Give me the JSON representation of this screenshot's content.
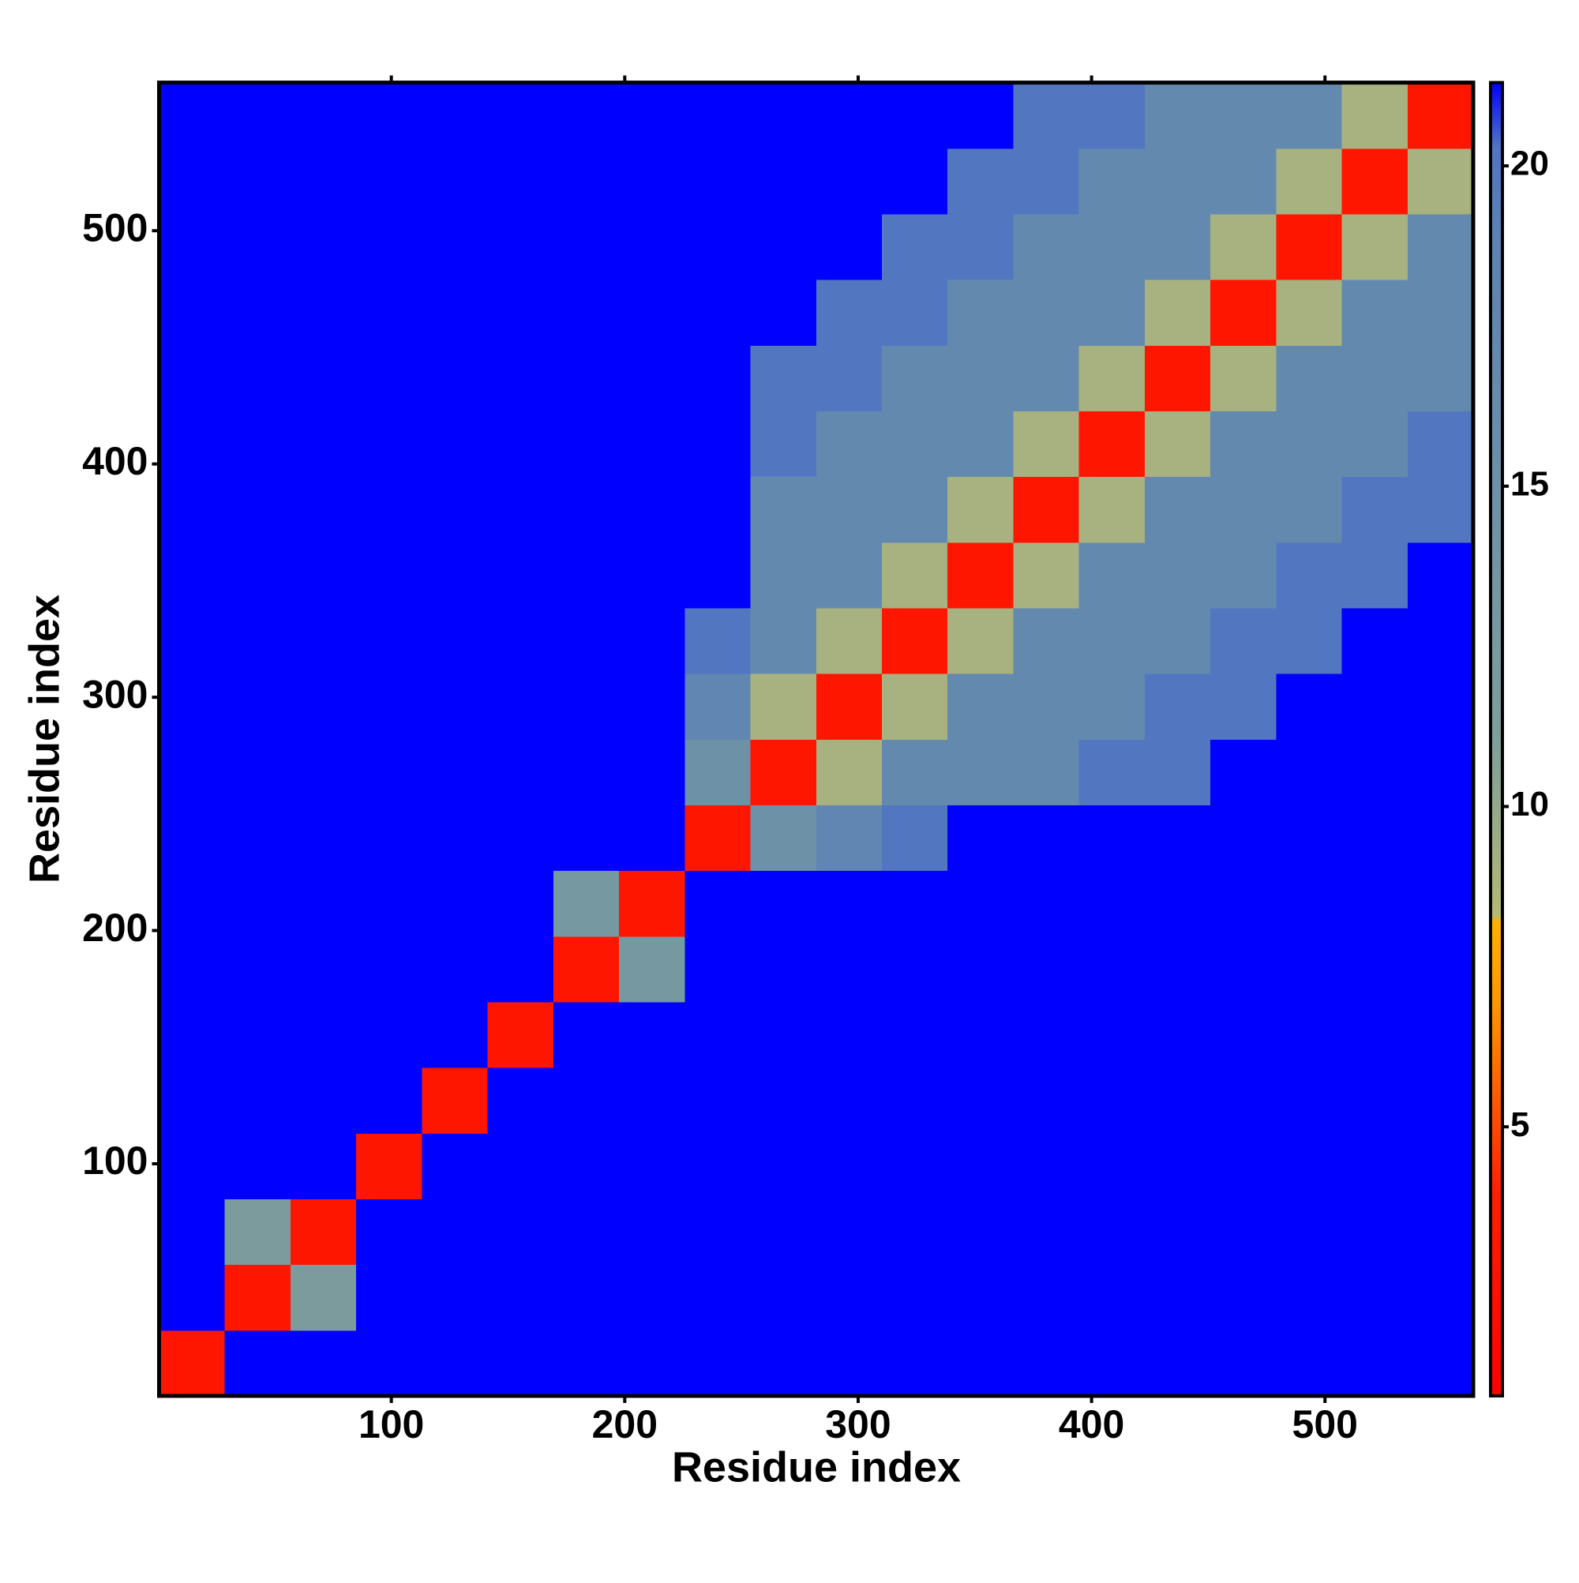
{
  "chart_data": {
    "type": "heatmap",
    "xlabel": "Residue index",
    "ylabel": "Residue index",
    "xlim": [
      0.5,
      563.5
    ],
    "ylim": [
      0.5,
      563.5
    ],
    "xticks": [
      100,
      200,
      300,
      400,
      500
    ],
    "yticks": [
      100,
      200,
      300,
      400,
      500
    ],
    "bins": [
      0.5,
      28.65,
      56.8,
      84.95,
      113.1,
      141.25,
      169.4,
      197.55,
      225.7,
      253.85,
      282,
      310.15,
      338.3,
      366.45,
      394.6,
      422.75,
      450.9,
      479.05,
      507.2,
      535.35,
      563.5
    ],
    "z": [
      [
        3,
        22,
        25,
        25,
        25,
        25,
        25,
        25,
        25,
        25,
        25,
        25,
        25,
        25,
        25,
        25,
        25,
        25,
        25,
        25
      ],
      [
        22,
        3,
        12,
        25,
        25,
        25,
        25,
        25,
        25,
        25,
        25,
        25,
        25,
        25,
        25,
        25,
        25,
        25,
        25,
        25
      ],
      [
        25,
        12,
        3,
        22,
        25,
        25,
        25,
        25,
        25,
        25,
        25,
        25,
        25,
        25,
        25,
        25,
        25,
        25,
        25,
        25
      ],
      [
        25,
        25,
        22,
        3,
        22,
        25,
        25,
        25,
        25,
        25,
        25,
        25,
        25,
        25,
        25,
        25,
        25,
        25,
        25,
        25
      ],
      [
        25,
        25,
        25,
        22,
        3,
        22,
        25,
        25,
        25,
        25,
        25,
        25,
        25,
        25,
        25,
        25,
        25,
        25,
        25,
        25
      ],
      [
        25,
        25,
        25,
        25,
        22,
        3,
        22,
        25,
        25,
        25,
        25,
        25,
        25,
        25,
        25,
        25,
        25,
        25,
        25,
        25
      ],
      [
        25,
        25,
        25,
        25,
        25,
        22,
        3,
        13,
        25,
        25,
        25,
        25,
        25,
        25,
        25,
        25,
        25,
        25,
        25,
        25
      ],
      [
        25,
        25,
        25,
        25,
        25,
        25,
        13,
        3,
        22,
        25,
        25,
        25,
        25,
        25,
        25,
        25,
        25,
        25,
        25,
        25
      ],
      [
        25,
        25,
        25,
        25,
        25,
        25,
        25,
        22,
        3,
        15,
        18,
        20,
        25,
        25,
        25,
        25,
        25,
        25,
        25,
        25
      ],
      [
        25,
        25,
        25,
        25,
        25,
        25,
        25,
        25,
        15,
        3,
        9,
        17,
        17,
        17,
        20,
        20,
        25,
        25,
        25,
        25
      ],
      [
        25,
        25,
        25,
        25,
        25,
        25,
        25,
        25,
        18,
        9,
        3,
        9,
        17,
        17,
        17,
        20,
        20,
        25,
        25,
        25
      ],
      [
        25,
        25,
        25,
        25,
        25,
        25,
        25,
        25,
        20,
        17,
        9,
        3,
        9,
        17,
        17,
        17,
        20,
        20,
        25,
        25
      ],
      [
        25,
        25,
        25,
        25,
        25,
        25,
        25,
        25,
        25,
        17,
        17,
        9,
        3,
        9,
        17,
        17,
        17,
        20,
        20,
        25
      ],
      [
        25,
        25,
        25,
        25,
        25,
        25,
        25,
        25,
        25,
        17,
        17,
        17,
        9,
        3,
        9,
        17,
        17,
        17,
        20,
        20
      ],
      [
        25,
        25,
        25,
        25,
        25,
        25,
        25,
        25,
        25,
        20,
        17,
        17,
        17,
        9,
        3,
        9,
        17,
        17,
        17,
        20
      ],
      [
        25,
        25,
        25,
        25,
        25,
        25,
        25,
        25,
        25,
        20,
        20,
        17,
        17,
        17,
        9,
        3,
        9,
        17,
        17,
        17
      ],
      [
        25,
        25,
        25,
        25,
        25,
        25,
        25,
        25,
        25,
        25,
        20,
        20,
        17,
        17,
        17,
        9,
        3,
        9,
        17,
        17
      ],
      [
        25,
        25,
        25,
        25,
        25,
        25,
        25,
        25,
        25,
        25,
        25,
        20,
        20,
        17,
        17,
        17,
        9,
        3,
        9,
        17
      ],
      [
        25,
        25,
        25,
        25,
        25,
        25,
        25,
        25,
        25,
        25,
        25,
        25,
        20,
        20,
        17,
        17,
        17,
        9,
        3,
        9
      ],
      [
        25,
        25,
        25,
        25,
        25,
        25,
        25,
        25,
        25,
        25,
        25,
        25,
        25,
        20,
        20,
        17,
        17,
        17,
        9,
        3
      ]
    ],
    "colorbar": {
      "lim": [
        0.8,
        21.3
      ],
      "ticks": [
        5,
        10,
        15,
        20
      ]
    },
    "colorscale": [
      [
        0.8,
        "#ff0000"
      ],
      [
        4,
        "#ff2000"
      ],
      [
        7,
        "#ff9900"
      ],
      [
        8.2,
        "#ffb000"
      ],
      [
        8.3,
        "#b5b877"
      ],
      [
        11,
        "#7f9f9a"
      ],
      [
        19,
        "#5b82b4"
      ],
      [
        20.3,
        "#4f74c4"
      ],
      [
        21.3,
        "#0000ff"
      ]
    ]
  }
}
